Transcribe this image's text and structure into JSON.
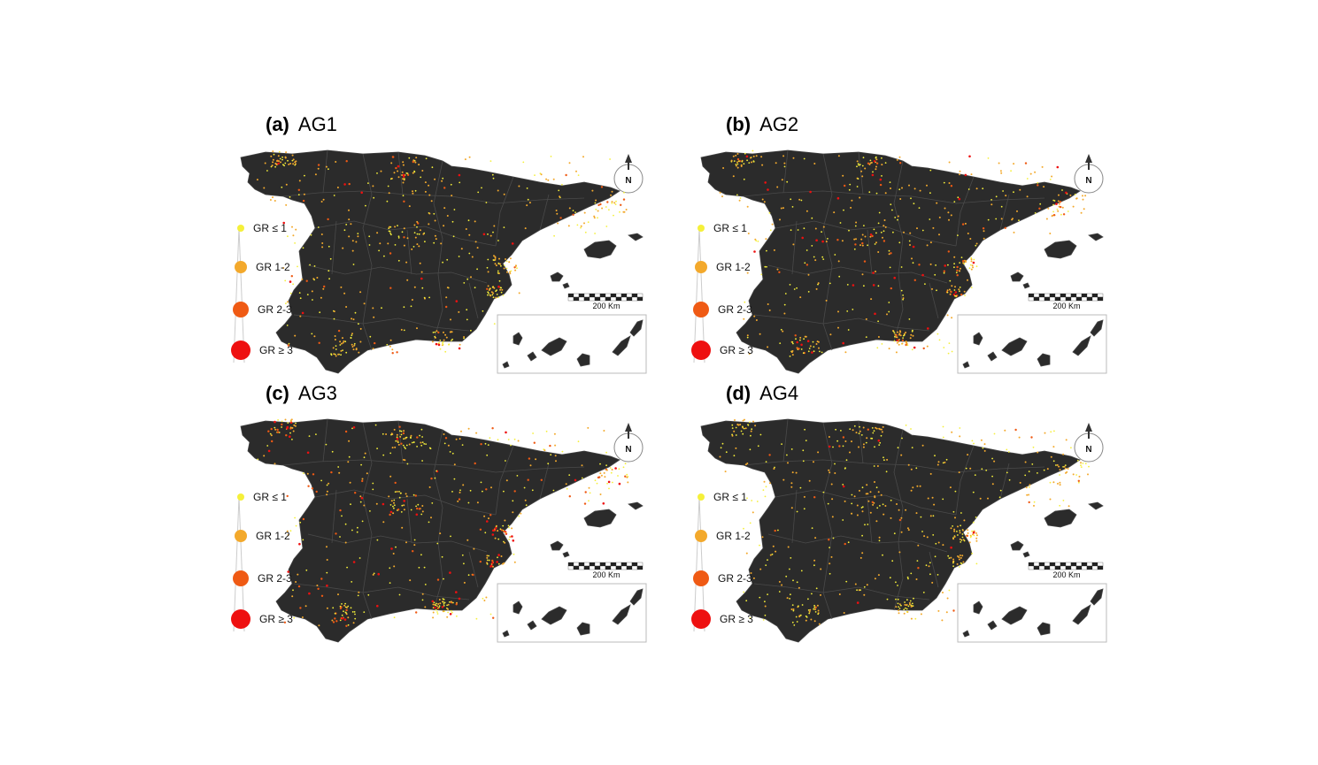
{
  "panels": [
    {
      "tag": "(a)",
      "name": "AG1",
      "intensity": 0.35
    },
    {
      "tag": "(b)",
      "name": "AG2",
      "intensity": 0.45
    },
    {
      "tag": "(c)",
      "name": "AG3",
      "intensity": 0.85
    },
    {
      "tag": "(d)",
      "name": "AG4",
      "intensity": 0.15
    }
  ],
  "legend": [
    {
      "label": "GR ≤ 1",
      "color": "#f5f03a"
    },
    {
      "label": "GR 1-2",
      "color": "#f3a92c"
    },
    {
      "label": "GR 2-3",
      "color": "#ef5a14"
    },
    {
      "label": "GR ≥ 3",
      "color": "#ee1010"
    }
  ],
  "scale_bar": {
    "label": "200 Km"
  },
  "north_arrow": {
    "label": "N"
  },
  "colors": {
    "land": "#2b2b2b",
    "borders": "#4a4a4a",
    "background": "#ffffff"
  }
}
